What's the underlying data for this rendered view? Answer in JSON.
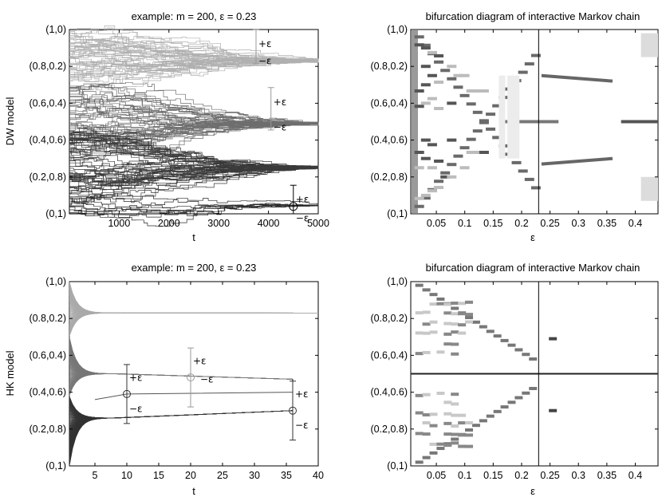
{
  "panels": {
    "top_left": {
      "title": "example: m = 200, ε = 0.23",
      "ylabel": "DW model",
      "xlabel": "t",
      "xticks": [
        "1000",
        "2000",
        "3000",
        "4000",
        "5000"
      ],
      "yticks": [
        "(0,1)",
        "(0.2,0.8)",
        "(0.4,0.6)",
        "(0.6,0.4)",
        "(0.8,0.2)",
        "(1,0)"
      ],
      "annotations": [
        "+ε",
        "−ε",
        "+ε",
        "−ε",
        "+ε",
        "−ε"
      ]
    },
    "top_right": {
      "title": "bifurcation diagram of interactive Markov chain",
      "xlabel": "ε",
      "xticks": [
        "0.05",
        "0.1",
        "0.15",
        "0.2",
        "0.25",
        "0.3",
        "0.35",
        "0.4"
      ],
      "yticks": [
        "(0,1)",
        "(0.2,0.8)",
        "(0.4,0.6)",
        "(0.6,0.4)",
        "(0.8,0.2)",
        "(1,0)"
      ]
    },
    "bottom_left": {
      "title": "example: m = 200, ε = 0.23",
      "ylabel": "HK model",
      "xlabel": "t",
      "xticks": [
        "5",
        "10",
        "15",
        "20",
        "25",
        "30",
        "35",
        "40"
      ],
      "yticks": [
        "(0,1)",
        "(0.2,0.8)",
        "(0.4,0.6)",
        "(0.6,0.4)",
        "(0.8,0.2)",
        "(1,0)"
      ],
      "annotations": [
        "+ε",
        "−ε",
        "+ε",
        "−ε",
        "+ε",
        "−ε"
      ]
    },
    "bottom_right": {
      "title": "bifurcation diagram of interactive Markov chain",
      "xlabel": "ε",
      "xticks": [
        "0.05",
        "0.1",
        "0.15",
        "0.2",
        "0.25",
        "0.3",
        "0.35",
        "0.4"
      ],
      "yticks": [
        "(0,1)",
        "(0.2,0.8)",
        "(0.4,0.6)",
        "(0.6,0.4)",
        "(0.8,0.2)",
        "(1,0)"
      ]
    }
  },
  "chart_data": [
    {
      "type": "line",
      "panel": "top_left",
      "title": "example: m = 200, ε = 0.23",
      "ylabel": "DW model",
      "xlabel": "t",
      "xlim": [
        0,
        5000
      ],
      "ylim": [
        0,
        1
      ],
      "description_clusters_final": [
        0.83,
        0.49,
        0.25,
        0.04
      ],
      "epsilon": 0.23,
      "m": 200,
      "error_bars": [
        {
          "x": 3750,
          "y": 0.93,
          "plus": "+ε",
          "minus": "−ε"
        },
        {
          "x": 4050,
          "y": 0.57,
          "plus": "+ε",
          "minus": "−ε"
        },
        {
          "x": 4500,
          "y": 0.04,
          "plus": "+ε",
          "minus": "−ε"
        }
      ]
    },
    {
      "type": "heatmap",
      "panel": "top_right",
      "title": "bifurcation diagram of interactive Markov chain",
      "xlabel": "ε",
      "xlim": [
        0.005,
        0.44
      ],
      "ylim": [
        0,
        1
      ],
      "marker_epsilon": 0.23,
      "branches": [
        {
          "x": [
            0.02,
            0.225
          ],
          "y": [
            0.96,
            0.04
          ]
        },
        {
          "x": [
            0.02,
            0.225
          ],
          "y": [
            0.04,
            0.96
          ]
        }
      ],
      "post_marker_clusters": [
        0.83,
        0.5,
        0.17,
        0.75,
        0.28
      ]
    },
    {
      "type": "line",
      "panel": "bottom_left",
      "title": "example: m = 200, ε = 0.23",
      "ylabel": "HK model",
      "xlabel": "t",
      "xlim": [
        1,
        40
      ],
      "ylim": [
        0,
        1
      ],
      "epsilon": 0.23,
      "m": 200,
      "final_clusters": [
        0.83,
        0.47,
        0.3
      ],
      "error_bars": [
        {
          "x": 10,
          "y": 0.39,
          "plus": "+ε",
          "minus": "−ε"
        },
        {
          "x": 20,
          "y": 0.48,
          "plus": "+ε",
          "minus": "−ε"
        },
        {
          "x": 36,
          "y": 0.3,
          "plus": "+ε",
          "minus": "−ε"
        }
      ]
    },
    {
      "type": "heatmap",
      "panel": "bottom_right",
      "title": "bifurcation diagram of interactive Markov chain",
      "xlabel": "ε",
      "xlim": [
        0.005,
        0.44
      ],
      "ylim": [
        0,
        1
      ],
      "marker_epsilon": 0.23,
      "center_line": 0.5,
      "isolated_points": [
        {
          "x": 0.255,
          "y": 0.69
        },
        {
          "x": 0.255,
          "y": 0.3
        }
      ]
    }
  ]
}
